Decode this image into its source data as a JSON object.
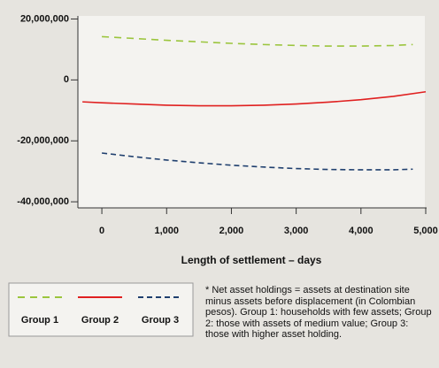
{
  "chart_data": {
    "type": "line",
    "xlabel": "Length of settlement – days",
    "xlim": [
      -370,
      5000
    ],
    "xticks": [
      0,
      {
        "value": 1000,
        "label": "1,000"
      },
      {
        "value": 2000,
        "label": "2,000"
      },
      {
        "value": 3000,
        "label": "3,000"
      },
      {
        "value": 4000,
        "label": "4,000"
      },
      {
        "value": 5000,
        "label": "5,000"
      }
    ],
    "ylim": [
      -42000000,
      21000000
    ],
    "yticks": [
      {
        "value": 20000000,
        "label": "20,000,000"
      },
      0,
      {
        "value": -20000000,
        "label": "-20,000,000"
      },
      {
        "value": -40000000,
        "label": "-40,000,000"
      }
    ],
    "series": [
      {
        "name": "Group 1",
        "color": "#9bc53d",
        "dash": "8,6",
        "x": [
          0,
          500,
          1000,
          1500,
          2000,
          2500,
          3000,
          3500,
          4000,
          4500,
          4800
        ],
        "values": [
          14200000,
          13600000,
          13000000,
          12500000,
          12000000,
          11600000,
          11300000,
          11100000,
          11100000,
          11300000,
          11600000
        ]
      },
      {
        "name": "Group 2",
        "color": "#e02020",
        "dash": "none",
        "x": [
          -300,
          0,
          500,
          1000,
          1500,
          2000,
          2500,
          3000,
          3500,
          4000,
          4500,
          5000
        ],
        "values": [
          -7200000,
          -7500000,
          -7900000,
          -8300000,
          -8500000,
          -8500000,
          -8300000,
          -7900000,
          -7300000,
          -6500000,
          -5400000,
          -3900000
        ]
      },
      {
        "name": "Group 3",
        "color": "#1f3f6e",
        "dash": "6,4",
        "x": [
          0,
          500,
          1000,
          1500,
          2000,
          2500,
          3000,
          3500,
          4000,
          4500,
          4800
        ],
        "values": [
          -24000000,
          -25200000,
          -26300000,
          -27200000,
          -28000000,
          -28600000,
          -29100000,
          -29400000,
          -29500000,
          -29500000,
          -29300000
        ]
      }
    ],
    "note": "* Net asset holdings = assets at destination site minus assets before displacement (in Colombian pesos). Group 1: households with few assets; Group 2: those with assets of medium value; Group 3: those with higher asset holding."
  }
}
